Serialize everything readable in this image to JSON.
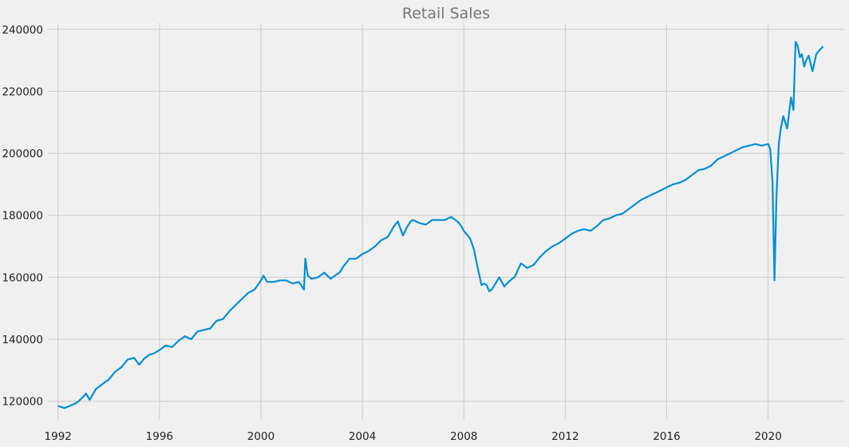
{
  "chart_data": {
    "type": "line",
    "title": "Retail Sales",
    "xlabel": "",
    "ylabel": "",
    "xlim": [
      1991.6,
      2023.0
    ],
    "ylim": [
      114000,
      242000
    ],
    "x_ticks": [
      1992,
      1996,
      2000,
      2004,
      2008,
      2012,
      2016,
      2020
    ],
    "y_ticks": [
      120000,
      140000,
      160000,
      180000,
      200000,
      220000,
      240000
    ],
    "x_tick_labels": [
      "1992",
      "1996",
      "2000",
      "2004",
      "2008",
      "2012",
      "2016",
      "2020"
    ],
    "y_tick_labels": [
      "120000",
      "140000",
      "160000",
      "180000",
      "200000",
      "220000",
      "240000"
    ],
    "grid": true,
    "colors": {
      "line": "#008fd5",
      "grid": "#cbcbcb",
      "background": "#f0f0f0"
    },
    "series": [
      {
        "x": [
          1992.0,
          1992.25,
          1992.5,
          1992.75,
          1993.0,
          1993.1,
          1993.25,
          1993.5,
          1993.75,
          1994.0,
          1994.25,
          1994.5,
          1994.75,
          1995.0,
          1995.2,
          1995.4,
          1995.6,
          1995.8,
          1996.0,
          1996.25,
          1996.5,
          1996.75,
          1997.0,
          1997.25,
          1997.5,
          1997.75,
          1998.0,
          1998.25,
          1998.5,
          1998.75,
          1999.0,
          1999.25,
          1999.5,
          1999.75,
          2000.0,
          2000.1,
          2000.25,
          2000.5,
          2000.75,
          2001.0,
          2001.25,
          2001.5,
          2001.7,
          2001.75,
          2001.85,
          2002.0,
          2002.25,
          2002.5,
          2002.75,
          2003.0,
          2003.1,
          2003.25,
          2003.5,
          2003.75,
          2004.0,
          2004.25,
          2004.5,
          2004.75,
          2005.0,
          2005.25,
          2005.4,
          2005.6,
          2005.75,
          2005.9,
          2006.0,
          2006.25,
          2006.5,
          2006.75,
          2007.0,
          2007.25,
          2007.5,
          2007.75,
          2007.9,
          2008.0,
          2008.1,
          2008.25,
          2008.4,
          2008.55,
          2008.7,
          2008.8,
          2008.9,
          2009.0,
          2009.1,
          2009.25,
          2009.4,
          2009.6,
          2009.7,
          2009.9,
          2010.0,
          2010.25,
          2010.5,
          2010.75,
          2011.0,
          2011.25,
          2011.5,
          2011.75,
          2012.0,
          2012.25,
          2012.5,
          2012.75,
          2013.0,
          2013.25,
          2013.5,
          2013.75,
          2014.0,
          2014.25,
          2014.5,
          2014.75,
          2015.0,
          2015.25,
          2015.5,
          2015.75,
          2016.0,
          2016.25,
          2016.5,
          2016.75,
          2017.0,
          2017.25,
          2017.5,
          2017.75,
          2018.0,
          2018.25,
          2018.5,
          2018.75,
          2019.0,
          2019.25,
          2019.5,
          2019.75,
          2020.0,
          2020.08,
          2020.17,
          2020.25,
          2020.33,
          2020.42,
          2020.5,
          2020.6,
          2020.75,
          2020.9,
          2021.0,
          2021.08,
          2021.17,
          2021.25,
          2021.33,
          2021.42,
          2021.5,
          2021.6,
          2021.75,
          2021.9,
          2022.0,
          2022.17
        ],
        "values": [
          118500,
          117800,
          118600,
          119600,
          121500,
          122500,
          120500,
          124000,
          125500,
          127000,
          129500,
          131000,
          133500,
          134000,
          131800,
          133800,
          135000,
          135500,
          136500,
          138000,
          137500,
          139500,
          141000,
          140000,
          142500,
          143000,
          143500,
          146000,
          146500,
          149000,
          151000,
          153000,
          155000,
          156000,
          159000,
          160500,
          158500,
          158500,
          159000,
          159000,
          158000,
          158500,
          156000,
          166000,
          160500,
          159500,
          160000,
          161500,
          159500,
          161000,
          161500,
          163500,
          166000,
          166000,
          167500,
          168500,
          170000,
          172000,
          173000,
          176500,
          178000,
          173500,
          176000,
          178000,
          178500,
          177500,
          177000,
          178500,
          178500,
          178500,
          179500,
          178000,
          176500,
          175000,
          174000,
          172500,
          169000,
          163000,
          157500,
          158000,
          157500,
          155500,
          156000,
          158000,
          160000,
          157000,
          158000,
          159500,
          160000,
          164500,
          163000,
          164000,
          166500,
          168500,
          170000,
          171000,
          172500,
          174000,
          175000,
          175500,
          175000,
          176500,
          178500,
          179000,
          180000,
          180500,
          182000,
          183500,
          185000,
          186000,
          187000,
          188000,
          189000,
          190000,
          190500,
          191500,
          193000,
          194500,
          195000,
          196000,
          198000,
          199000,
          200000,
          201000,
          202000,
          202500,
          203000,
          202500,
          203000,
          201500,
          191000,
          159000,
          186000,
          203000,
          208000,
          212000,
          208000,
          218000,
          214000,
          236000,
          234500,
          231000,
          232000,
          228000,
          230000,
          231500,
          226500,
          232000,
          233000,
          234500
        ]
      }
    ]
  }
}
